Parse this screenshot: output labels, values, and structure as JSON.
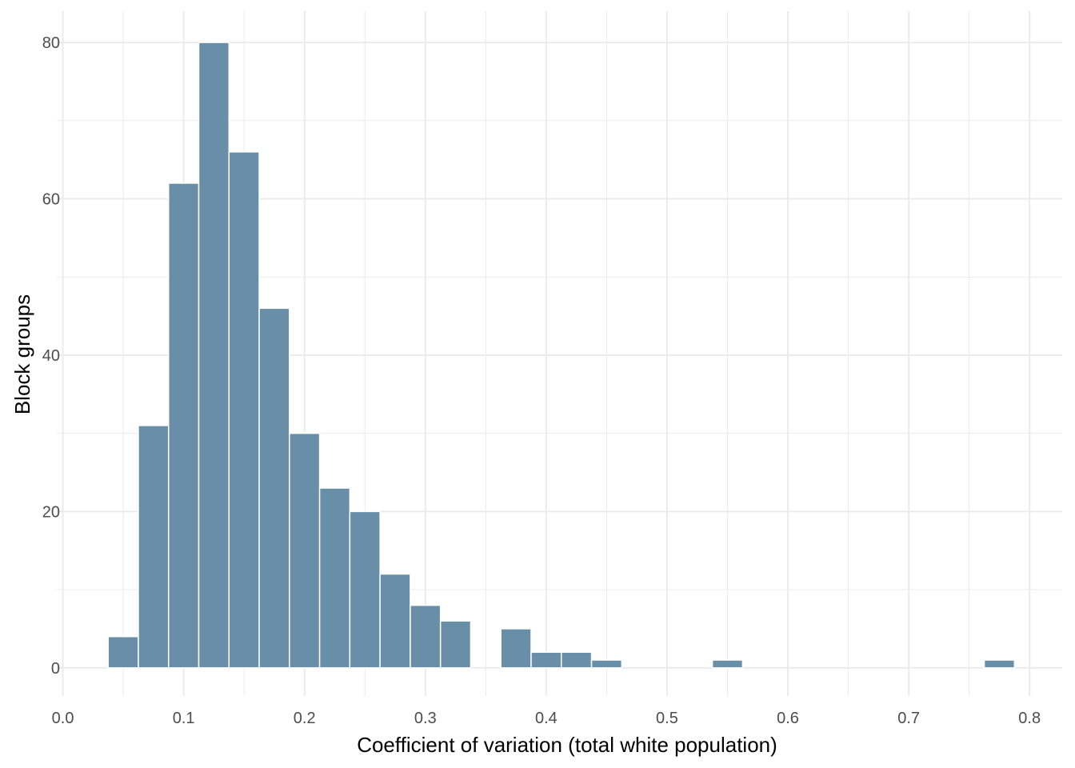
{
  "chart_data": {
    "type": "bar",
    "xlabel": "Coefficient of variation (total white population)",
    "ylabel": "Block groups",
    "xlim": [
      -0.005,
      0.827
    ],
    "ylim": [
      -3.6,
      84
    ],
    "x_ticks": [
      0.0,
      0.1,
      0.2,
      0.3,
      0.4,
      0.5,
      0.6,
      0.7,
      0.8
    ],
    "x_tick_labels": [
      "0.0",
      "0.1",
      "0.2",
      "0.3",
      "0.4",
      "0.5",
      "0.6",
      "0.7",
      "0.8"
    ],
    "y_ticks": [
      0,
      20,
      40,
      60,
      80
    ],
    "y_tick_labels": [
      "0",
      "20",
      "40",
      "60",
      "80"
    ],
    "grid": true,
    "bin_width": 0.025,
    "bin_centers": [
      0.05,
      0.075,
      0.1,
      0.125,
      0.15,
      0.175,
      0.2,
      0.225,
      0.25,
      0.275,
      0.3,
      0.325,
      0.35,
      0.375,
      0.4,
      0.425,
      0.45,
      0.475,
      0.5,
      0.525,
      0.55,
      0.575,
      0.6,
      0.625,
      0.65,
      0.675,
      0.7,
      0.725,
      0.75,
      0.775
    ],
    "values": [
      4,
      31,
      62,
      80,
      66,
      46,
      30,
      23,
      20,
      12,
      8,
      6,
      0,
      5,
      2,
      2,
      1,
      0,
      0,
      0,
      1,
      0,
      0,
      0,
      0,
      0,
      0,
      0,
      0,
      1
    ],
    "colors": {
      "bar": "#688ea8",
      "bar_outline": "#ffffff",
      "grid": "#ebebeb"
    }
  }
}
